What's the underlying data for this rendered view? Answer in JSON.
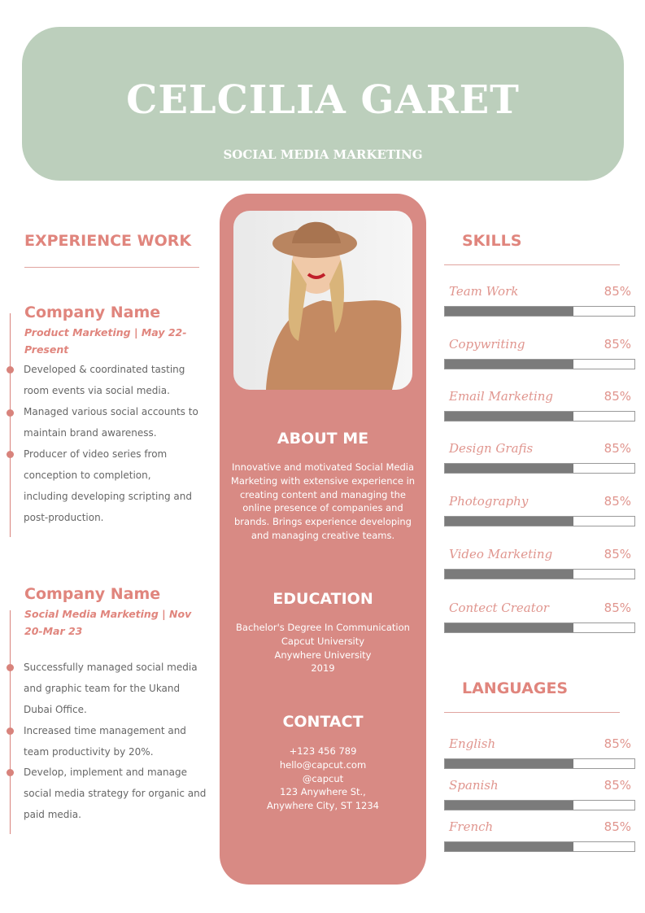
{
  "header": {
    "name": "CELCILIA GARET",
    "role": "SOCIAL MEDIA MARKETING"
  },
  "experience": {
    "title": "EXPERIENCE WORK",
    "jobs": [
      {
        "company": "Company Name",
        "subtitle": "Product Marketing | May 22-Present",
        "bullets": [
          "Developed & coordinated tasting room events via social media.",
          "Managed various social accounts to maintain brand awareness.",
          "Producer of video series from conception to completion, including developing scripting and post-production."
        ]
      },
      {
        "company": "Company Name",
        "subtitle": "Social Media Marketing | Nov 20-Mar 23",
        "bullets": [
          "Successfully managed social media and graphic team for the Ukand Dubai Office.",
          "Increased time management and team productivity by 20%.",
          "Develop, implement and manage social media strategy for organic and  paid media."
        ]
      }
    ]
  },
  "center": {
    "about_title": "ABOUT ME",
    "about_text": "Innovative and motivated Social Media Marketing with extensive experience in creating content and managing the online presence of companies and brands. Brings experience developing and managing creative teams.",
    "education_title": "EDUCATION",
    "education_lines": [
      "Bachelor's Degree In Communication",
      "Capcut University",
      "Anywhere University",
      "2019"
    ],
    "contact_title": "CONTACT",
    "contact_lines": [
      "+123  456 789",
      "hello@capcut.com",
      "@capcut",
      "123 Anywhere St.,",
      "Anywhere City, ST 1234"
    ]
  },
  "skills": {
    "title": "SKILLS",
    "items": [
      {
        "label": "Team Work",
        "pct": "85%",
        "fill": 0.68
      },
      {
        "label": "Copywriting",
        "pct": "85%",
        "fill": 0.68
      },
      {
        "label": "Email Marketing",
        "pct": "85%",
        "fill": 0.68
      },
      {
        "label": "Design Grafis",
        "pct": "85%",
        "fill": 0.68
      },
      {
        "label": "Photography",
        "pct": "85%",
        "fill": 0.68
      },
      {
        "label": "Video Marketing",
        "pct": "85%",
        "fill": 0.68
      },
      {
        "label": "Contect Creator",
        "pct": "85%",
        "fill": 0.68
      }
    ]
  },
  "languages": {
    "title": "LANGUAGES",
    "items": [
      {
        "label": "English",
        "pct": "85%",
        "fill": 0.68
      },
      {
        "label": "Spanish",
        "pct": "85%",
        "fill": 0.68
      },
      {
        "label": "French",
        "pct": "85%",
        "fill": 0.68
      }
    ]
  },
  "colors": {
    "header_bg": "#bccfbc",
    "accent": "#d88a84",
    "bar_fill": "#7b7b7b"
  }
}
